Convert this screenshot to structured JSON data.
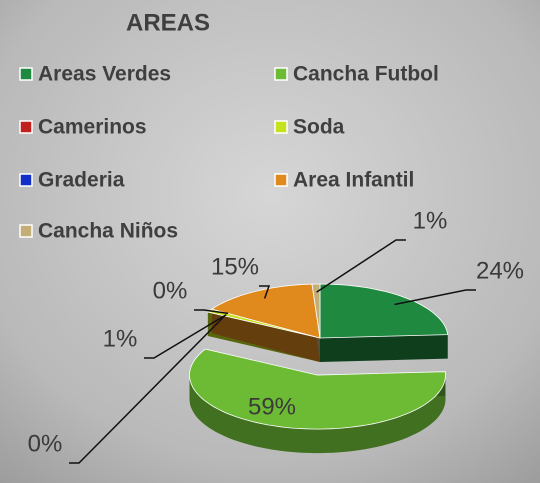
{
  "chart_data": {
    "type": "pie",
    "title": "AREAS",
    "series": [
      {
        "name": "Areas Verdes",
        "color": "#1f8a3f",
        "values": [
          24
        ],
        "value_labels": [
          "24%"
        ]
      },
      {
        "name": "Cancha Futbol",
        "color": "#6dbb35",
        "values": [
          59
        ],
        "value_labels": [
          "59%"
        ]
      },
      {
        "name": "Camerinos",
        "color": "#c0201e",
        "values": [
          0
        ],
        "value_labels": [
          "0%"
        ]
      },
      {
        "name": "Soda",
        "color": "#c6e21e",
        "values": [
          1
        ],
        "value_labels": [
          "1%"
        ]
      },
      {
        "name": "Graderia",
        "color": "#1030c8",
        "values": [
          0
        ],
        "value_labels": [
          "0%"
        ]
      },
      {
        "name": "Area Infantil",
        "color": "#e0891c",
        "values": [
          15
        ],
        "value_labels": [
          "15%"
        ]
      },
      {
        "name": "Cancha Niños",
        "color": "#c3ae78",
        "values": [
          1
        ],
        "value_labels": [
          "1%"
        ]
      }
    ],
    "legend": "top"
  }
}
